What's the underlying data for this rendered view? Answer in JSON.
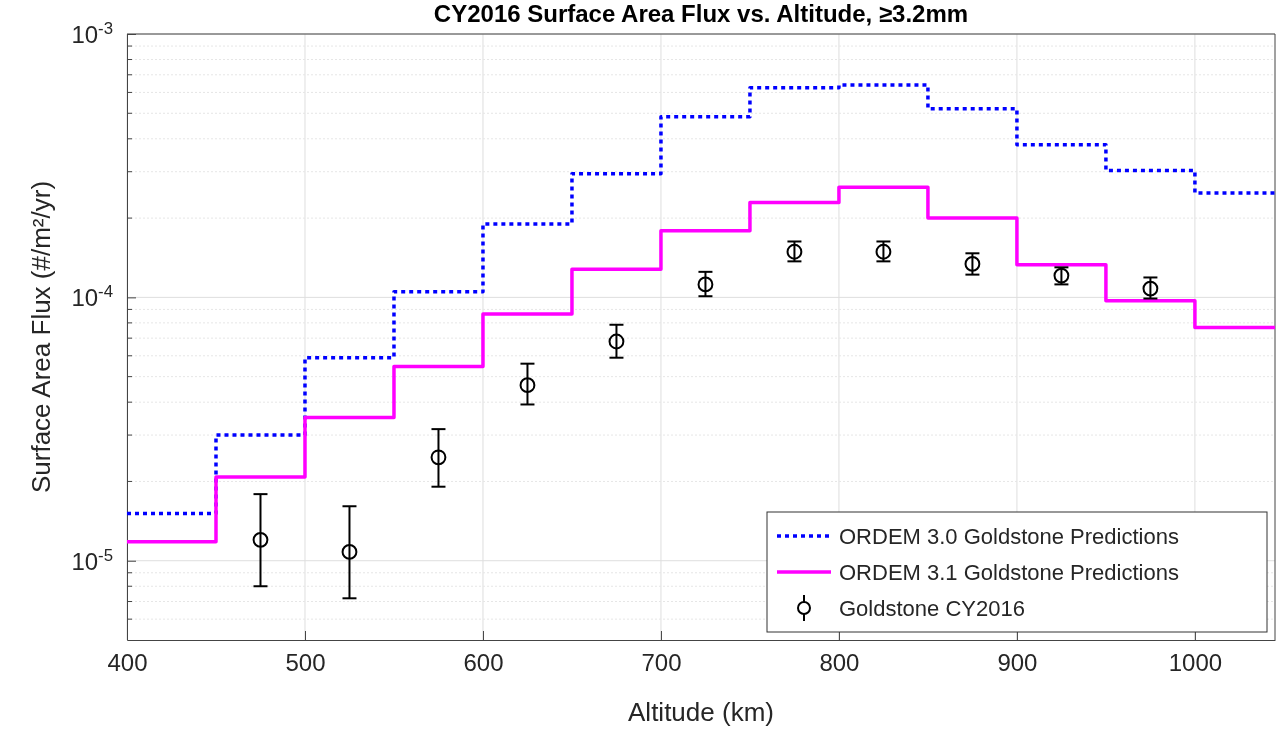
{
  "chart_data": {
    "type": "step",
    "title": "CY2016 Surface Area Flux vs. Altitude, ≥3.2mm",
    "xlabel": "Altitude (km)",
    "ylabel": "Surface Area Flux (#/m²/yr)",
    "log": "y",
    "grid": true,
    "legend": "bottom right",
    "xlim": [
      400,
      1045
    ],
    "xticks": [
      400,
      500,
      600,
      700,
      800,
      900,
      1000
    ],
    "ylim": [
      5e-06,
      0.001
    ],
    "yticks": [
      {
        "value": 1e-05,
        "label": "10$^{-5}$"
      },
      {
        "value": 0.0001,
        "label": "10$^{-4}$"
      },
      {
        "value": 0.001,
        "label": "10$^{-3}$"
      }
    ],
    "series": [
      {
        "name": "ORDEM 3.0 Goldstone Predictions",
        "color": "#0000ff",
        "line_style": "dotted",
        "x": [
          400,
          450,
          500,
          550,
          600,
          650,
          700,
          750,
          800,
          850,
          900,
          950,
          1000,
          1045
        ],
        "values": [
          1.51e-05,
          3e-05,
          5.9e-05,
          0.000105,
          0.00019,
          0.000295,
          0.000485,
          0.000625,
          0.00064,
          0.00052,
          0.00038,
          0.000303,
          0.000249,
          0.000249
        ]
      },
      {
        "name": "ORDEM 3.1 Goldstone Predictions",
        "color": "#ff00ff",
        "line_style": "solid",
        "x": [
          400,
          450,
          500,
          550,
          600,
          650,
          700,
          750,
          800,
          850,
          900,
          950,
          1000,
          1045
        ],
        "values": [
          1.18e-05,
          2.08e-05,
          3.5e-05,
          5.46e-05,
          8.65e-05,
          0.000128,
          0.000179,
          0.000229,
          0.000262,
          0.0002,
          0.000133,
          9.7e-05,
          7.68e-05,
          7.68e-05
        ]
      },
      {
        "name": "Goldstone CY2016",
        "type": "scatter",
        "color": "#000000",
        "marker": "circle",
        "x": [
          475,
          525,
          575,
          625,
          675,
          725,
          775,
          825,
          875,
          925,
          975
        ],
        "values": [
          1.2e-05,
          1.08e-05,
          2.47e-05,
          4.64e-05,
          6.8e-05,
          0.000112,
          0.000149,
          0.000149,
          0.000134,
          0.000121,
          0.000108
        ],
        "errors": [
          [
            8e-06,
            1.79e-05
          ],
          [
            7.2e-06,
            1.61e-05
          ],
          [
            1.91e-05,
            3.16e-05
          ],
          [
            3.92e-05,
            5.6e-05
          ],
          [
            5.9e-05,
            7.87e-05
          ],
          [
            0.000101,
            0.000125
          ],
          [
            0.000137,
            0.000163
          ],
          [
            0.000137,
            0.000163
          ],
          [
            0.000122,
            0.000147
          ],
          [
            0.000112,
            0.00013
          ],
          [
            9.9e-05,
            0.000119
          ]
        ]
      }
    ]
  }
}
